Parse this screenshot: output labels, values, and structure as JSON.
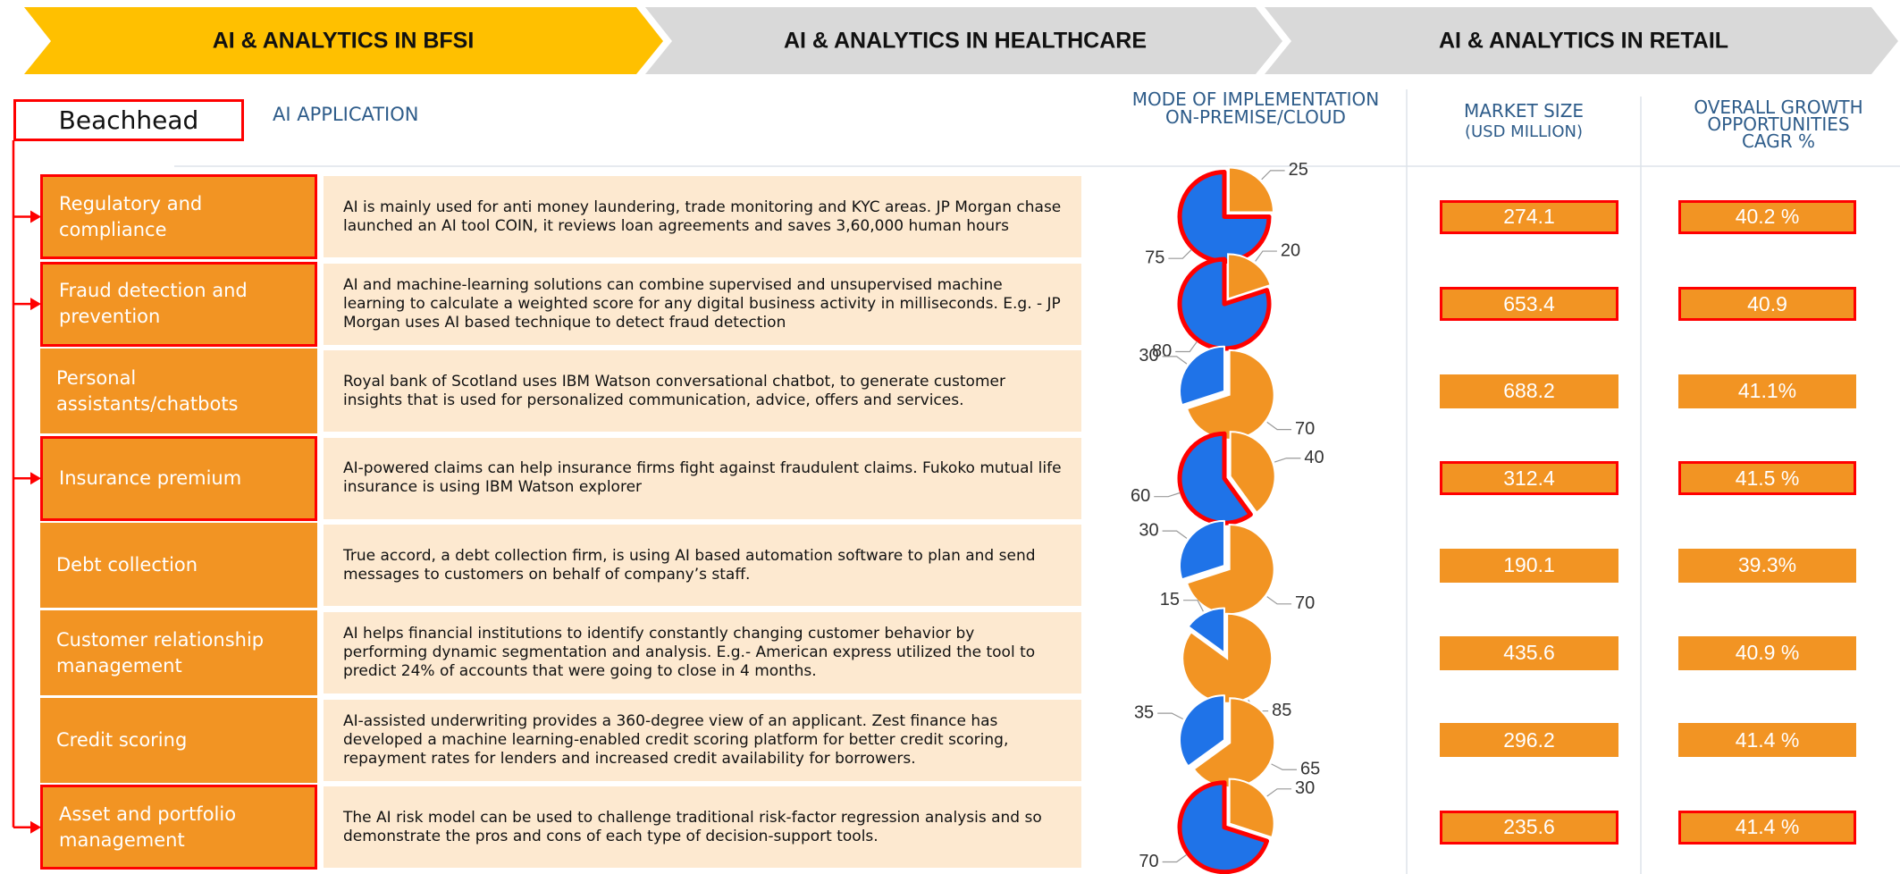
{
  "tabs": [
    "AI & ANALYTICS IN BFSI",
    "AI & ANALYTICS IN HEALTHCARE",
    "AI & ANALYTICS IN RETAIL"
  ],
  "header": {
    "beachhead": "Beachhead",
    "application": "AI APPLICATION",
    "mode": [
      "MODE OF IMPLEMENTATION",
      "ON-PREMISE/CLOUD"
    ],
    "market": [
      "MARKET SIZE",
      "(USD MILLION)"
    ],
    "growth": [
      "OVERALL GROWTH",
      "OPPORTUNITIES",
      "CAGR %"
    ]
  },
  "pie_colors": [
    "#1f73e8",
    "#f29423"
  ],
  "rows": [
    {
      "label": "Regulatory and compliance",
      "beachhead": true,
      "description": "AI is mainly used for anti money laundering, trade monitoring and KYC areas. JP Morgan chase launched an AI tool COIN, it reviews loan agreements and saves 3,60,000 human hours",
      "pie": [
        75,
        25
      ],
      "market_size": "274.1",
      "growth": "40.2 %"
    },
    {
      "label": "Fraud detection and prevention",
      "beachhead": true,
      "description": "AI and machine-learning solutions can combine supervised and unsupervised machine learning to calculate a weighted score for any digital business activity in milliseconds. E.g. - JP Morgan uses AI based technique to detect fraud detection",
      "pie": [
        80,
        20
      ],
      "market_size": "653.4",
      "growth": "40.9"
    },
    {
      "label": "Personal assistants/chatbots",
      "beachhead": false,
      "description": "Royal bank of Scotland uses IBM Watson conversational chatbot, to generate customer insights that is used for personalized communication, advice, offers and services.",
      "pie": [
        30,
        70
      ],
      "market_size": "688.2",
      "growth": "41.1%"
    },
    {
      "label": "Insurance premium",
      "beachhead": true,
      "description": "AI-powered claims can help insurance firms fight against fraudulent claims. Fukoko mutual life insurance is using IBM Watson explorer",
      "pie": [
        60,
        40
      ],
      "market_size": "312.4",
      "growth": "41.5 %"
    },
    {
      "label": "Debt collection",
      "beachhead": false,
      "description": "True accord, a debt collection firm, is using AI based automation software to plan and send messages to customers on behalf of company’s staff.",
      "pie": [
        30,
        70
      ],
      "market_size": "190.1",
      "growth": "39.3%"
    },
    {
      "label": "Customer relationship management",
      "beachhead": false,
      "description": "AI helps financial institutions to identify constantly changing customer behavior by performing dynamic segmentation and analysis. E.g.- American express utilized the tool to predict 24% of accounts that were going to close in 4 months.",
      "pie": [
        15,
        85
      ],
      "market_size": "435.6",
      "growth": "40.9 %"
    },
    {
      "label": "Credit scoring",
      "beachhead": false,
      "description": "AI-assisted underwriting provides a 360-degree view of an applicant. Zest finance has developed a machine learning-enabled credit scoring platform for better credit scoring, repayment rates for lenders and increased credit availability for borrowers.",
      "pie": [
        35,
        65
      ],
      "market_size": "296.2",
      "growth": "41.4 %"
    },
    {
      "label": "Asset and portfolio management",
      "beachhead": true,
      "description": "The AI risk model can be used to challenge traditional risk-factor regression analysis and so demonstrate the pros and cons of each type of decision-support tools.",
      "pie": [
        70,
        30
      ],
      "market_size": "235.6",
      "growth": "41.4 %"
    }
  ]
}
